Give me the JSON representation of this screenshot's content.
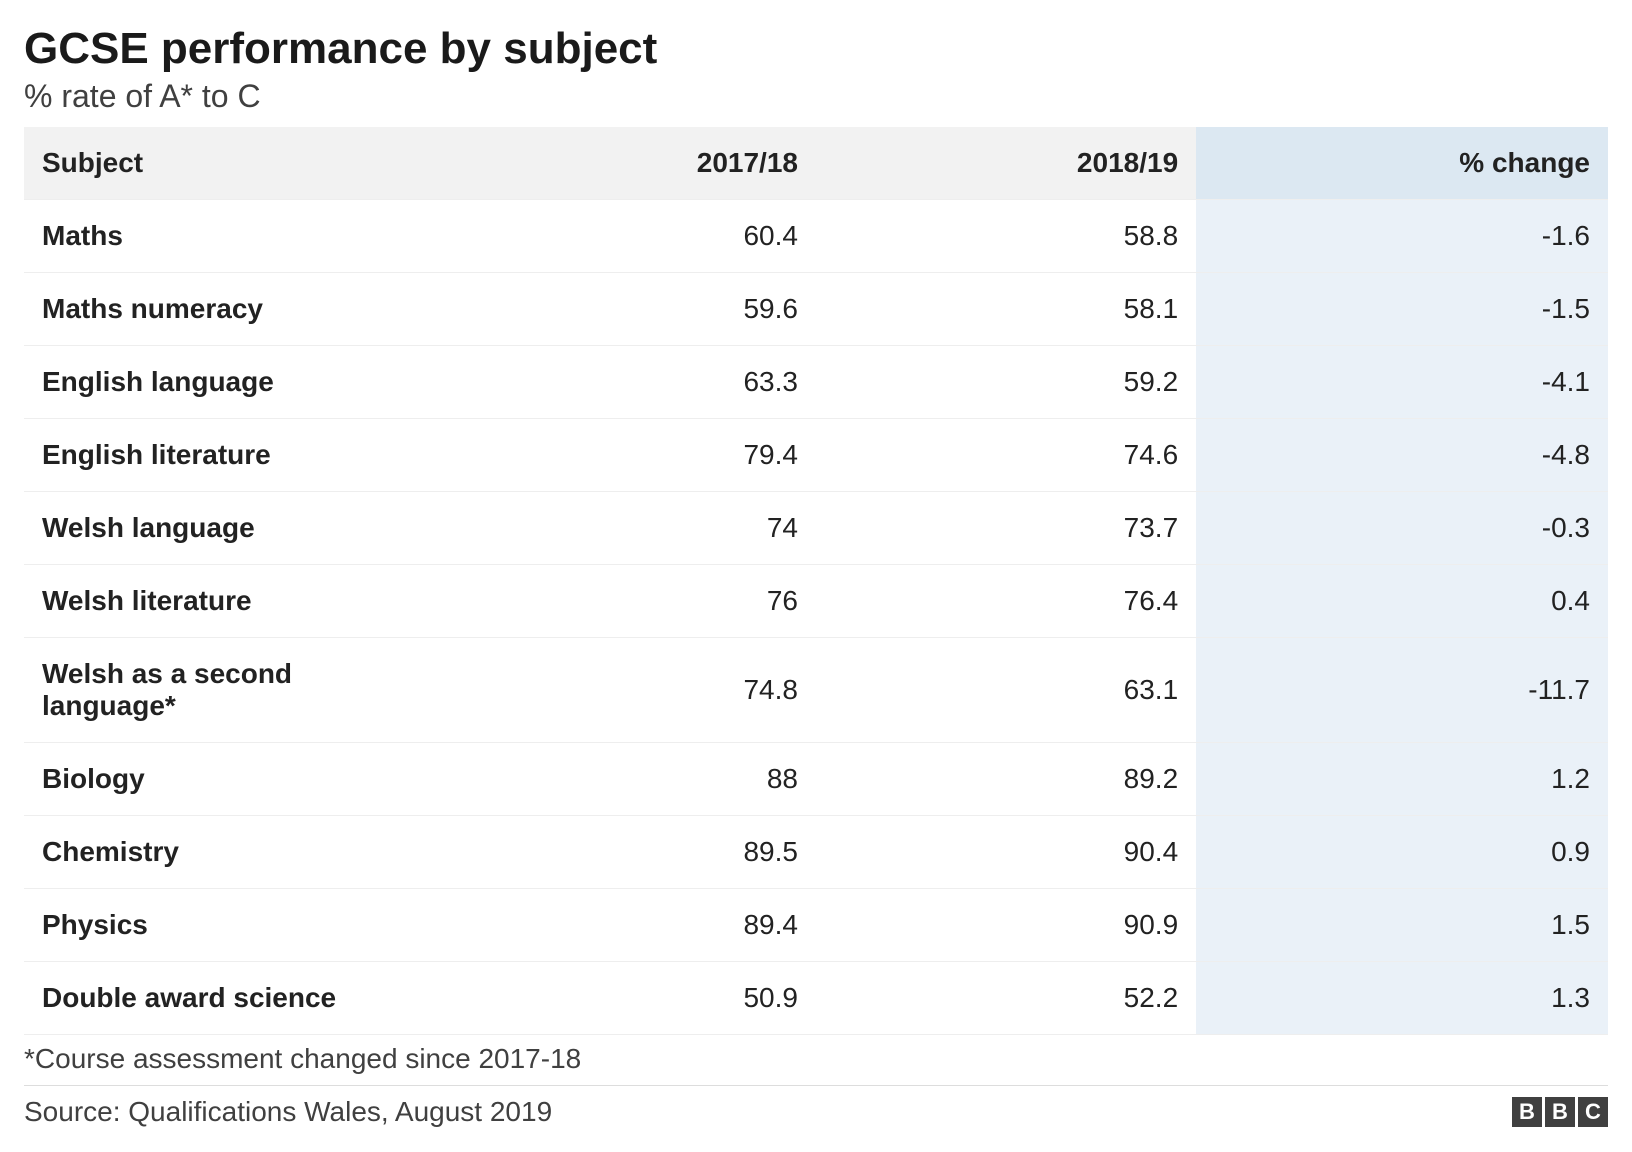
{
  "title": "GCSE performance by subject",
  "subtitle": "% rate of A* to C",
  "columns": [
    "Subject",
    "2017/18",
    "2018/19",
    "% change"
  ],
  "rows": [
    {
      "subject": "Maths",
      "y1": "60.4",
      "y2": "58.8",
      "chg": "-1.6"
    },
    {
      "subject": "Maths numeracy",
      "y1": "59.6",
      "y2": "58.1",
      "chg": "-1.5"
    },
    {
      "subject": "English language",
      "y1": "63.3",
      "y2": "59.2",
      "chg": "-4.1"
    },
    {
      "subject": "English literature",
      "y1": "79.4",
      "y2": "74.6",
      "chg": "-4.8"
    },
    {
      "subject": "Welsh language",
      "y1": "74",
      "y2": "73.7",
      "chg": "-0.3"
    },
    {
      "subject": "Welsh literature",
      "y1": "76",
      "y2": "76.4",
      "chg": "0.4"
    },
    {
      "subject": "Welsh as a second language*",
      "y1": "74.8",
      "y2": "63.1",
      "chg": "-11.7"
    },
    {
      "subject": "Biology",
      "y1": "88",
      "y2": "89.2",
      "chg": "1.2"
    },
    {
      "subject": "Chemistry",
      "y1": "89.5",
      "y2": "90.4",
      "chg": "0.9"
    },
    {
      "subject": "Physics",
      "y1": "89.4",
      "y2": "90.9",
      "chg": "1.5"
    },
    {
      "subject": "Double award science",
      "y1": "50.9",
      "y2": "52.2",
      "chg": "1.3"
    }
  ],
  "footnote": "*Course assessment changed since 2017-18",
  "source": "Source: Qualifications Wales, August 2019",
  "logo": [
    "B",
    "B",
    "C"
  ],
  "style": {
    "header_bg": "#f2f2f2",
    "highlight_header_bg": "#dce8f2",
    "highlight_cell_bg": "#eaf1f8",
    "border_color": "#eeeeee",
    "title_fontsize": 44,
    "subtitle_fontsize": 32,
    "cell_fontsize": 28,
    "text_color": "#222222",
    "muted_text_color": "#404040",
    "background": "#ffffff"
  }
}
